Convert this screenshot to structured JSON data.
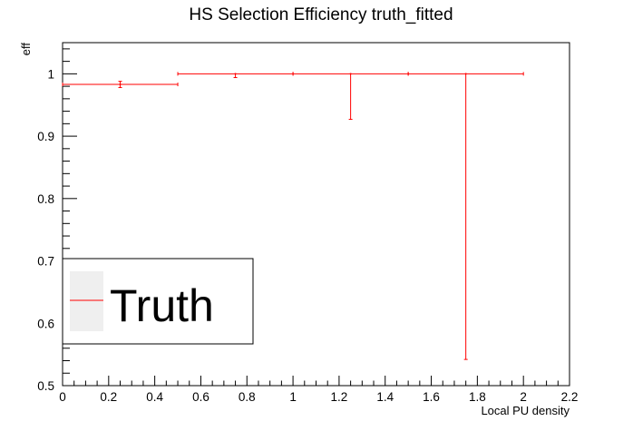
{
  "chart_data": {
    "type": "scatter",
    "title": "HS Selection Efficiency truth_fitted",
    "xlabel": "Local PU density",
    "ylabel": "eff",
    "xlim": [
      0,
      2.2
    ],
    "ylim": [
      0.5,
      1.05
    ],
    "x_ticks": [
      "0",
      "0.2",
      "0.4",
      "0.6",
      "0.8",
      "1",
      "1.2",
      "1.4",
      "1.6",
      "1.8",
      "2",
      "2.2"
    ],
    "y_ticks": [
      "0.5",
      "0.6",
      "0.7",
      "0.8",
      "0.9",
      "1"
    ],
    "grid": false,
    "legend_placement": "lower-left",
    "series": [
      {
        "name": "Truth",
        "color": "#ff0000",
        "points": [
          {
            "x": 0.25,
            "xerr": 0.25,
            "y": 0.983,
            "yerr_low": 0.005,
            "yerr_high": 0.005
          },
          {
            "x": 0.75,
            "xerr": 0.25,
            "y": 1.0,
            "yerr_low": 0.006,
            "yerr_high": 0.0
          },
          {
            "x": 1.25,
            "xerr": 0.25,
            "y": 1.0,
            "yerr_low": 0.073,
            "yerr_high": 0.0
          },
          {
            "x": 1.75,
            "xerr": 0.25,
            "y": 1.0,
            "yerr_low": 0.458,
            "yerr_high": 0.0
          }
        ]
      }
    ]
  }
}
